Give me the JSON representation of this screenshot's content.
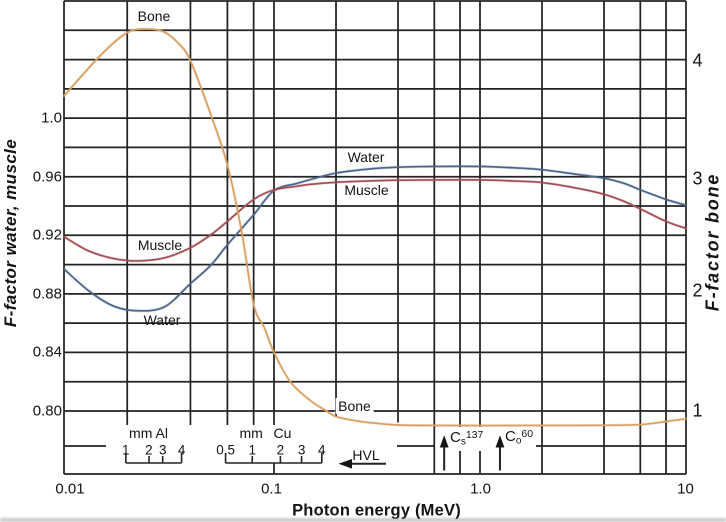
{
  "chart_data": {
    "type": "line",
    "title": "",
    "x_axis": {
      "label": "Photon energy (MeV)",
      "scale": "log",
      "min": 0.01,
      "max": 10,
      "tick_labels": [
        "0.01",
        "0.1",
        "1.0",
        "10"
      ],
      "tick_values": [
        0.01,
        0.1,
        1.0,
        10
      ],
      "minor_gridlines_per_decade": [
        2,
        4,
        6,
        8
      ]
    },
    "y_axis_left": {
      "label": "F-factor water, muscle",
      "tick_labels": [
        "1.0",
        "0.96",
        "0.92",
        "0.88",
        "0.84",
        "0.80"
      ],
      "tick_values": [
        1.0,
        0.96,
        0.92,
        0.88,
        0.84,
        0.8
      ],
      "gridline_step": 0.02,
      "displayed_range": [
        0.76,
        1.08
      ]
    },
    "y_axis_right": {
      "label": "F-factor bone",
      "tick_labels": [
        "4",
        "3",
        "2",
        "1"
      ],
      "tick_values": [
        4,
        3,
        2,
        1
      ],
      "relation_to_left": "right = (left - 0.72) / 0.08"
    },
    "grid": "both",
    "legend": "inline curve labels",
    "series": [
      {
        "name": "Water",
        "axis": "left",
        "color": "#48648a",
        "points": [
          [
            0.01,
            0.897
          ],
          [
            0.013,
            0.8825
          ],
          [
            0.017,
            0.872
          ],
          [
            0.022,
            0.8685
          ],
          [
            0.03,
            0.871
          ],
          [
            0.04,
            0.887
          ],
          [
            0.05,
            0.8995
          ],
          [
            0.06,
            0.9135
          ],
          [
            0.08,
            0.934
          ],
          [
            0.1,
            0.9505
          ],
          [
            0.13,
            0.9555
          ],
          [
            0.15,
            0.958
          ],
          [
            0.2,
            0.9625
          ],
          [
            0.3,
            0.9655
          ],
          [
            0.4,
            0.9665
          ],
          [
            0.6,
            0.967
          ],
          [
            1.0,
            0.967
          ],
          [
            1.5,
            0.966
          ],
          [
            2.0,
            0.9648
          ],
          [
            3.0,
            0.9615
          ],
          [
            4.0,
            0.959
          ],
          [
            5.0,
            0.9555
          ],
          [
            6.0,
            0.951
          ],
          [
            8.0,
            0.9445
          ],
          [
            10.0,
            0.9405
          ]
        ]
      },
      {
        "name": "Muscle",
        "axis": "left",
        "color": "#a34c52",
        "points": [
          [
            0.01,
            0.919
          ],
          [
            0.013,
            0.9095
          ],
          [
            0.017,
            0.9043
          ],
          [
            0.022,
            0.9025
          ],
          [
            0.03,
            0.9045
          ],
          [
            0.04,
            0.9115
          ],
          [
            0.05,
            0.9203
          ],
          [
            0.06,
            0.9295
          ],
          [
            0.08,
            0.9445
          ],
          [
            0.1,
            0.951
          ],
          [
            0.13,
            0.9535
          ],
          [
            0.15,
            0.9548
          ],
          [
            0.2,
            0.9562
          ],
          [
            0.3,
            0.9572
          ],
          [
            0.4,
            0.9576
          ],
          [
            0.6,
            0.9578
          ],
          [
            1.0,
            0.9578
          ],
          [
            1.5,
            0.957
          ],
          [
            2.0,
            0.956
          ],
          [
            3.0,
            0.952
          ],
          [
            4.0,
            0.948
          ],
          [
            5.0,
            0.9432
          ],
          [
            6.0,
            0.938
          ],
          [
            8.0,
            0.9295
          ],
          [
            10.0,
            0.9247
          ]
        ]
      },
      {
        "name": "Bone",
        "axis": "right",
        "color": "#d89e62",
        "points": [
          [
            0.01,
            3.69
          ],
          [
            0.015,
            4.04
          ],
          [
            0.02,
            4.23
          ],
          [
            0.025,
            4.26
          ],
          [
            0.03,
            4.235
          ],
          [
            0.035,
            4.14
          ],
          [
            0.04,
            3.99
          ],
          [
            0.05,
            3.53
          ],
          [
            0.06,
            3.1
          ],
          [
            0.07,
            2.54
          ],
          [
            0.08,
            1.91
          ],
          [
            0.09,
            1.71
          ],
          [
            0.1,
            1.5
          ],
          [
            0.12,
            1.25
          ],
          [
            0.15,
            1.09
          ],
          [
            0.18,
            1.0
          ],
          [
            0.2,
            0.96
          ],
          [
            0.25,
            0.93
          ],
          [
            0.3,
            0.915
          ],
          [
            0.4,
            0.9
          ],
          [
            0.6,
            0.897
          ],
          [
            1.0,
            0.896
          ],
          [
            2.0,
            0.897
          ],
          [
            4.0,
            0.898
          ],
          [
            6.0,
            0.903
          ],
          [
            8.0,
            0.925
          ],
          [
            10.0,
            0.945
          ]
        ]
      }
    ],
    "curve_labels": [
      {
        "text": "Bone",
        "series": "Bone",
        "x_mev": 0.0268,
        "y_left": 1.0701
      },
      {
        "text": "Muscle",
        "series": "Muscle",
        "x_mev": 0.0286,
        "y_left": 0.9137
      },
      {
        "text": "Water",
        "series": "Water",
        "x_mev": 0.0293,
        "y_left": 0.8632
      },
      {
        "text": "Water",
        "series": "Water",
        "x_mev": 0.2796,
        "y_left": 0.9735
      },
      {
        "text": "Muscle",
        "series": "Muscle",
        "x_mev": 0.28,
        "y_left": 0.9507
      },
      {
        "text": "Bone",
        "series": "Bone",
        "x_mev": 0.246,
        "y_left": 0.8034
      }
    ],
    "annotations": {
      "hvl": {
        "label": "HVL",
        "arrow_direction": "left",
        "scales": [
          {
            "title": "mm Al",
            "tick_labels": [
              "1",
              "2",
              "3",
              "4"
            ],
            "tick_mev": [
              0.0197,
              0.0254,
              0.0295,
              0.0363
            ]
          },
          {
            "title_unit": "mm",
            "title_material": "Cu",
            "tick_labels": [
              "0.5",
              "1",
              "2",
              "3",
              "4"
            ],
            "tick_mev": [
              0.0588,
              0.0788,
              0.1074,
              0.1361,
              0.1706
            ]
          }
        ]
      },
      "sources": [
        {
          "label_main": "C",
          "label_sub": "s",
          "label_sup": "137",
          "mev": 0.67
        },
        {
          "label_main": "C",
          "label_sub": "o",
          "label_sup": "60",
          "mev": 1.25
        }
      ]
    }
  }
}
